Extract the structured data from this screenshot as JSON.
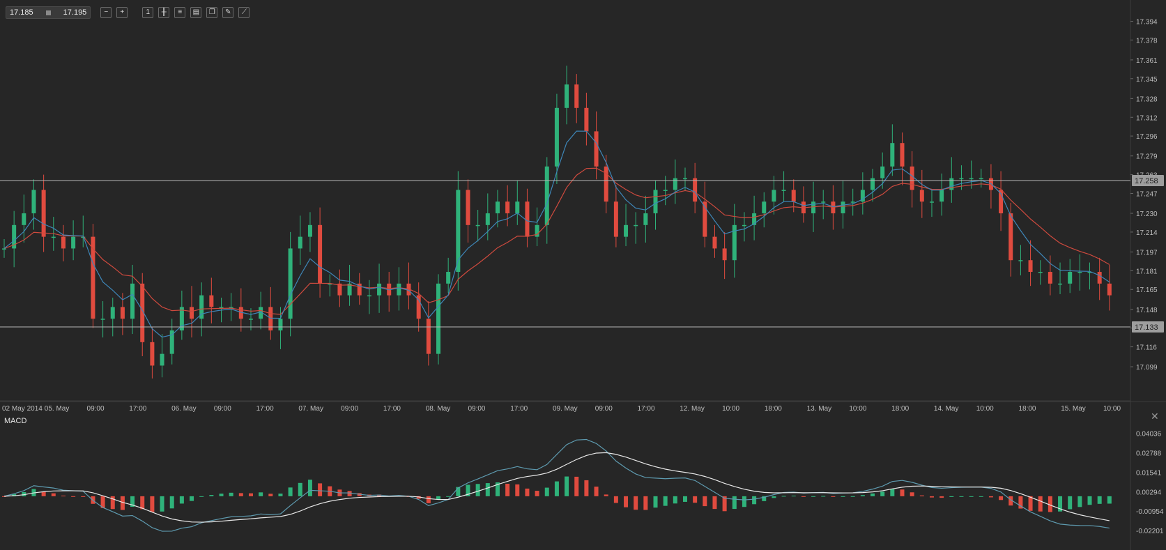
{
  "toolbar": {
    "bid": "17.185",
    "ask": "17.195",
    "buttons": [
      {
        "name": "zoom-out-icon",
        "glyph": "−"
      },
      {
        "name": "zoom-in-icon",
        "glyph": "+"
      },
      {
        "name": "timeframe-1h-icon",
        "glyph": "1"
      },
      {
        "name": "candlestick-type-icon",
        "glyph": "╫"
      },
      {
        "name": "indicators-icon",
        "glyph": "≡"
      },
      {
        "name": "chart-settings-icon",
        "glyph": "▤"
      },
      {
        "name": "copy-icon",
        "glyph": "❐"
      },
      {
        "name": "edit-icon",
        "glyph": "✎"
      },
      {
        "name": "draw-tool-icon",
        "glyph": "⟋"
      }
    ]
  },
  "colors": {
    "background": "#262626",
    "grid": "#3a3a3a",
    "up": "#2fb27a",
    "down": "#e04b3f",
    "ma_fast": "#3e86b8",
    "ma_slow": "#cf4a3e",
    "horizontal_line": "#b5b5b5",
    "macd_line": "#5e9bb0",
    "signal_line": "#e8e8e8"
  },
  "price_axis": {
    "ticks": [
      "17.394",
      "17.378",
      "17.361",
      "17.345",
      "17.328",
      "17.312",
      "17.296",
      "17.279",
      "17.263",
      "17.247",
      "17.230",
      "17.214",
      "17.197",
      "17.181",
      "17.165",
      "17.148",
      "17.132",
      "17.116",
      "17.099"
    ],
    "min": 17.083,
    "max": 17.405
  },
  "horizontal_lines": [
    {
      "label": "17.258",
      "value": 17.258
    },
    {
      "label": "17.133",
      "value": 17.133
    }
  ],
  "time_axis": [
    "02 May 2014",
    "05. May",
    "09:00",
    "17:00",
    "06. May",
    "09:00",
    "17:00",
    "07. May",
    "09:00",
    "17:00",
    "08. May",
    "09:00",
    "17:00",
    "09. May",
    "09:00",
    "17:00",
    "12. May",
    "10:00",
    "18:00",
    "13. May",
    "10:00",
    "18:00",
    "14. May",
    "10:00",
    "18:00",
    "15. May",
    "10:00"
  ],
  "macd": {
    "label": "MACD",
    "ticks": [
      "0.04036",
      "0.02788",
      "0.01541",
      "0.00294",
      "-0.00954",
      "-0.02201"
    ],
    "min": -0.03,
    "max": 0.05
  },
  "chart_data": {
    "type": "candlestick",
    "instrument_price_range": [
      17.083,
      17.405
    ],
    "close_path": [
      17.2,
      17.22,
      17.23,
      17.25,
      17.21,
      17.21,
      17.2,
      17.21,
      17.21,
      17.14,
      17.14,
      17.15,
      17.14,
      17.17,
      17.12,
      17.1,
      17.11,
      17.13,
      17.15,
      17.14,
      17.16,
      17.15,
      17.15,
      17.15,
      17.14,
      17.14,
      17.15,
      17.13,
      17.14,
      17.2,
      17.21,
      17.22,
      17.17,
      17.17,
      17.16,
      17.17,
      17.16,
      17.16,
      17.17,
      17.16,
      17.17,
      17.16,
      17.14,
      17.11,
      17.17,
      17.18,
      17.25,
      17.22,
      17.22,
      17.23,
      17.24,
      17.23,
      17.24,
      17.21,
      17.22,
      17.27,
      17.32,
      17.34,
      17.32,
      17.3,
      17.27,
      17.24,
      17.21,
      17.22,
      17.22,
      17.23,
      17.25,
      17.25,
      17.26,
      17.26,
      17.24,
      17.21,
      17.2,
      17.19,
      17.22,
      17.22,
      17.23,
      17.24,
      17.25,
      17.25,
      17.24,
      17.23,
      17.24,
      17.24,
      17.23,
      17.24,
      17.24,
      17.25,
      17.26,
      17.27,
      17.29,
      17.27,
      17.25,
      17.24,
      17.24,
      17.25,
      17.26,
      17.26,
      17.26,
      17.26,
      17.25,
      17.23,
      17.19,
      17.19,
      17.18,
      17.18,
      17.17,
      17.17,
      17.18,
      17.18,
      17.18,
      17.17,
      17.16
    ]
  }
}
